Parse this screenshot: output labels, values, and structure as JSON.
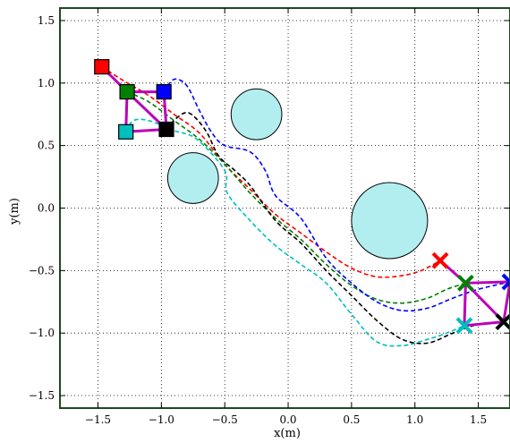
{
  "chart_data": {
    "type": "scatter",
    "title": "",
    "xlabel": "x(m)",
    "ylabel": "y(m)",
    "xlim": [
      -1.8,
      1.75
    ],
    "ylim": [
      -1.6,
      1.6
    ],
    "xticks": [
      -1.5,
      -1.0,
      -0.5,
      0.0,
      0.5,
      1.0,
      1.5
    ],
    "yticks": [
      -1.5,
      -1.0,
      -0.5,
      0.0,
      0.5,
      1.0,
      1.5
    ],
    "xtick_labels": [
      "−1.5",
      "−1.0",
      "−0.5",
      "0.0",
      "0.5",
      "1.0",
      "1.5"
    ],
    "ytick_labels": [
      "−1.5",
      "−1.0",
      "−0.5",
      "0.0",
      "0.5",
      "1.0",
      "1.5"
    ],
    "grid": "dotted",
    "axis_color": "#1f4a1f",
    "obstacles": [
      {
        "x": -0.25,
        "y": 0.75,
        "r": 0.2
      },
      {
        "x": -0.75,
        "y": 0.24,
        "r": 0.2
      },
      {
        "x": 0.8,
        "y": -0.1,
        "r": 0.3
      }
    ],
    "obstacle_color": "#b2eeef",
    "series": [
      {
        "color": "#ff0000",
        "start": [
          -1.47,
          1.13
        ],
        "goal": [
          1.2,
          -0.42
        ],
        "path": [
          [
            -1.47,
            1.13
          ],
          [
            -1.3,
            1.02
          ],
          [
            -1.1,
            0.9
          ],
          [
            -0.9,
            0.75
          ],
          [
            -0.7,
            0.6
          ],
          [
            -0.5,
            0.35
          ],
          [
            -0.3,
            0.15
          ],
          [
            -0.1,
            -0.05
          ],
          [
            0.1,
            -0.2
          ],
          [
            0.3,
            -0.35
          ],
          [
            0.5,
            -0.48
          ],
          [
            0.7,
            -0.55
          ],
          [
            0.9,
            -0.54
          ],
          [
            1.05,
            -0.5
          ],
          [
            1.2,
            -0.42
          ]
        ]
      },
      {
        "color": "#008000",
        "start": [
          -1.27,
          0.93
        ],
        "goal": [
          1.4,
          -0.6
        ],
        "path": [
          [
            -1.27,
            0.93
          ],
          [
            -1.1,
            0.85
          ],
          [
            -0.9,
            0.7
          ],
          [
            -0.7,
            0.55
          ],
          [
            -0.5,
            0.35
          ],
          [
            -0.3,
            0.12
          ],
          [
            -0.1,
            -0.08
          ],
          [
            0.1,
            -0.25
          ],
          [
            0.3,
            -0.45
          ],
          [
            0.5,
            -0.62
          ],
          [
            0.7,
            -0.73
          ],
          [
            0.9,
            -0.76
          ],
          [
            1.1,
            -0.72
          ],
          [
            1.25,
            -0.65
          ],
          [
            1.4,
            -0.6
          ]
        ]
      },
      {
        "color": "#0000ff",
        "start": [
          -0.98,
          0.93
        ],
        "goal": [
          1.75,
          -0.59
        ],
        "path": [
          [
            -0.98,
            0.93
          ],
          [
            -0.9,
            1.03
          ],
          [
            -0.8,
            0.98
          ],
          [
            -0.7,
            0.78
          ],
          [
            -0.6,
            0.6
          ],
          [
            -0.5,
            0.5
          ],
          [
            -0.3,
            0.45
          ],
          [
            -0.18,
            0.3
          ],
          [
            -0.1,
            0.1
          ],
          [
            0.1,
            -0.08
          ],
          [
            0.3,
            -0.4
          ],
          [
            0.5,
            -0.6
          ],
          [
            0.7,
            -0.75
          ],
          [
            0.9,
            -0.82
          ],
          [
            1.1,
            -0.8
          ],
          [
            1.3,
            -0.72
          ],
          [
            1.5,
            -0.65
          ],
          [
            1.75,
            -0.59
          ]
        ]
      },
      {
        "color": "#00bfbf",
        "start": [
          -1.28,
          0.61
        ],
        "goal": [
          1.39,
          -0.94
        ],
        "path": [
          [
            -1.28,
            0.61
          ],
          [
            -1.22,
            0.7
          ],
          [
            -1.1,
            0.7
          ],
          [
            -0.9,
            0.62
          ],
          [
            -0.72,
            0.55
          ],
          [
            -0.5,
            0.3
          ],
          [
            -0.48,
            0.12
          ],
          [
            -0.3,
            -0.1
          ],
          [
            -0.1,
            -0.3
          ],
          [
            0.1,
            -0.45
          ],
          [
            0.3,
            -0.6
          ],
          [
            0.5,
            -0.85
          ],
          [
            0.7,
            -1.07
          ],
          [
            0.9,
            -1.1
          ],
          [
            1.1,
            -1.05
          ],
          [
            1.25,
            -1.0
          ],
          [
            1.39,
            -0.94
          ]
        ]
      },
      {
        "color": "#000000",
        "start": [
          -0.96,
          0.63
        ],
        "goal": [
          1.7,
          -0.91
        ],
        "path": [
          [
            -0.96,
            0.63
          ],
          [
            -0.88,
            0.72
          ],
          [
            -0.78,
            0.76
          ],
          [
            -0.65,
            0.62
          ],
          [
            -0.55,
            0.42
          ],
          [
            -0.42,
            0.3
          ],
          [
            -0.3,
            0.18
          ],
          [
            -0.1,
            -0.1
          ],
          [
            0.1,
            -0.28
          ],
          [
            0.3,
            -0.5
          ],
          [
            0.5,
            -0.7
          ],
          [
            0.7,
            -0.9
          ],
          [
            0.9,
            -1.05
          ],
          [
            1.1,
            -1.08
          ],
          [
            1.3,
            -1.0
          ],
          [
            1.5,
            -0.93
          ],
          [
            1.7,
            -0.91
          ]
        ]
      }
    ],
    "formation_color": "#bb00bb",
    "start_formation": [
      [
        -1.47,
        1.13
      ],
      [
        -1.27,
        0.93
      ],
      [
        -0.98,
        0.93
      ],
      [
        -0.96,
        0.63
      ],
      [
        -1.28,
        0.61
      ]
    ],
    "start_edges": [
      [
        0,
        1
      ],
      [
        1,
        2
      ],
      [
        2,
        3
      ],
      [
        1,
        3
      ],
      [
        1,
        4
      ],
      [
        4,
        3
      ]
    ],
    "goal_formation": [
      [
        1.2,
        -0.42
      ],
      [
        1.4,
        -0.6
      ],
      [
        1.75,
        -0.59
      ],
      [
        1.7,
        -0.91
      ],
      [
        1.39,
        -0.94
      ]
    ],
    "goal_edges": [
      [
        0,
        1
      ],
      [
        1,
        2
      ],
      [
        1,
        3
      ],
      [
        1,
        4
      ],
      [
        4,
        3
      ],
      [
        3,
        2
      ]
    ]
  }
}
